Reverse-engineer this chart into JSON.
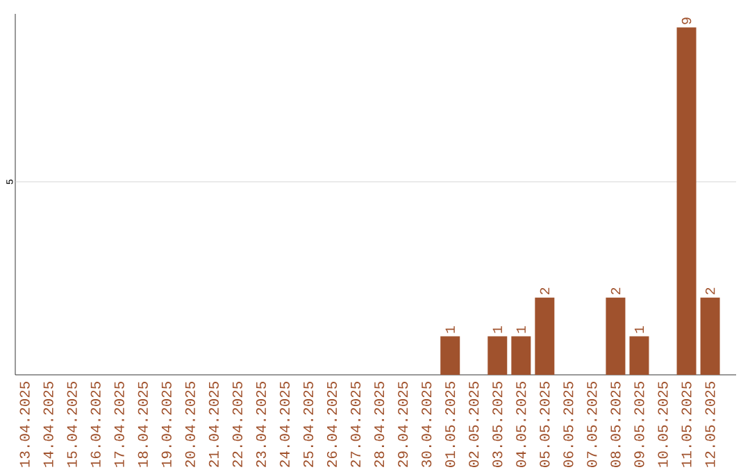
{
  "chart_data": {
    "type": "bar",
    "categories": [
      "13.04.2025",
      "14.04.2025",
      "15.04.2025",
      "16.04.2025",
      "17.04.2025",
      "18.04.2025",
      "19.04.2025",
      "20.04.2025",
      "21.04.2025",
      "22.04.2025",
      "23.04.2025",
      "24.04.2025",
      "25.04.2025",
      "26.04.2025",
      "27.04.2025",
      "28.04.2025",
      "29.04.2025",
      "30.04.2025",
      "01.05.2025",
      "02.05.2025",
      "03.05.2025",
      "04.05.2025",
      "05.05.2025",
      "06.05.2025",
      "07.05.2025",
      "08.05.2025",
      "09.05.2025",
      "10.05.2025",
      "11.05.2025",
      "12.05.2025"
    ],
    "values": [
      null,
      null,
      null,
      null,
      null,
      null,
      null,
      null,
      null,
      null,
      null,
      null,
      null,
      null,
      null,
      null,
      null,
      null,
      1,
      null,
      1,
      1,
      2,
      null,
      null,
      2,
      1,
      null,
      9,
      2
    ],
    "data_labels": true,
    "color": "#a0522d",
    "ylim": [
      0,
      9.35
    ],
    "ref_lines": [
      {
        "axis": "y",
        "value": 5,
        "label": "5",
        "color": "#cccccc"
      }
    ]
  }
}
